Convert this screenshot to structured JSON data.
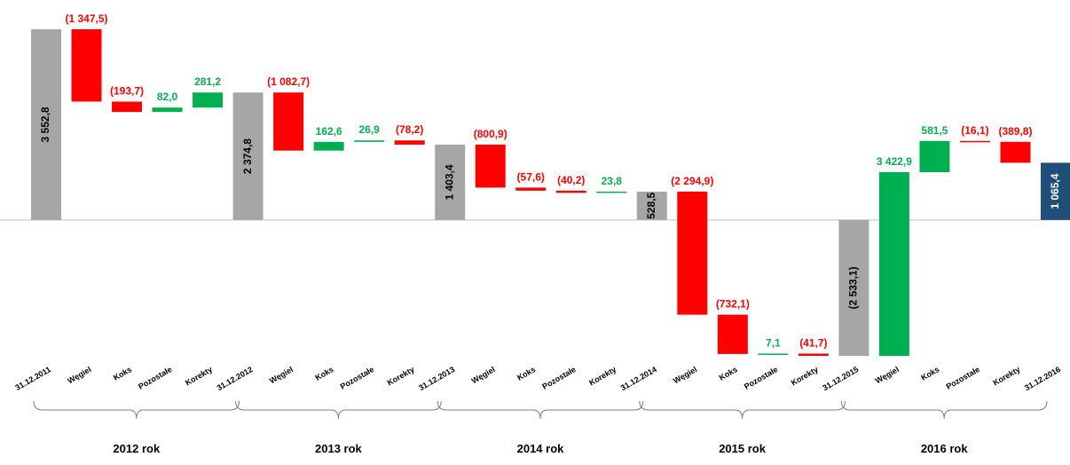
{
  "chart_data": {
    "type": "waterfall",
    "categories": [
      "31.12.2011",
      "Węgiel",
      "Koks",
      "Pozostałe",
      "Korekty",
      "31.12.2012",
      "Węgiel",
      "Koks",
      "Pozostałe",
      "Korekty",
      "31.12.2013",
      "Węgiel",
      "Koks",
      "Pozostałe",
      "Korekty",
      "31.12.2014",
      "Węgiel",
      "Koks",
      "Pozostałe",
      "Korekty",
      "31.12.2015",
      "Węgiel",
      "Koks",
      "Pozostałe",
      "Korekty",
      "31.12.2016"
    ],
    "measure": [
      "total",
      "relative",
      "relative",
      "relative",
      "relative",
      "total",
      "relative",
      "relative",
      "relative",
      "relative",
      "total",
      "relative",
      "relative",
      "relative",
      "relative",
      "total",
      "relative",
      "relative",
      "relative",
      "relative",
      "total",
      "relative",
      "relative",
      "relative",
      "relative",
      "total"
    ],
    "values": [
      3552.8,
      -1347.5,
      -193.7,
      82.0,
      281.2,
      2374.8,
      -1082.7,
      162.6,
      26.9,
      -78.2,
      1403.4,
      -800.9,
      -57.6,
      -40.2,
      23.8,
      528.5,
      -2294.9,
      -732.1,
      7.1,
      -41.7,
      -2533.1,
      3422.9,
      581.5,
      -16.1,
      -389.8,
      1065.4
    ],
    "value_labels": [
      "3 552,8",
      "(1 347,5)",
      "(193,7)",
      "82,0",
      "281,2",
      "2 374,8",
      "(1 082,7)",
      "162,6",
      "26,9",
      "(78,2)",
      "1 403,4",
      "(800,9)",
      "(57,6)",
      "(40,2)",
      "23,8",
      "528,5",
      "(2 294,9)",
      "(732,1)",
      "7,1",
      "(41,7)",
      "(2 533,1)",
      "3 422,9",
      "581,5",
      "(16,1)",
      "(389,8)",
      "1 065,4"
    ],
    "colors": [
      "#a6a6a6",
      "#ff0000",
      "#ff0000",
      "#00b050",
      "#00b050",
      "#a6a6a6",
      "#ff0000",
      "#00b050",
      "#00b050",
      "#ff0000",
      "#a6a6a6",
      "#ff0000",
      "#ff0000",
      "#ff0000",
      "#00b050",
      "#a6a6a6",
      "#ff0000",
      "#ff0000",
      "#00b050",
      "#ff0000",
      "#a6a6a6",
      "#00b050",
      "#00b050",
      "#ff0000",
      "#ff0000",
      "#1f4e79"
    ],
    "groups": [
      "2012 rok",
      "2013 rok",
      "2014 rok",
      "2015 rok",
      "2016 rok"
    ]
  }
}
